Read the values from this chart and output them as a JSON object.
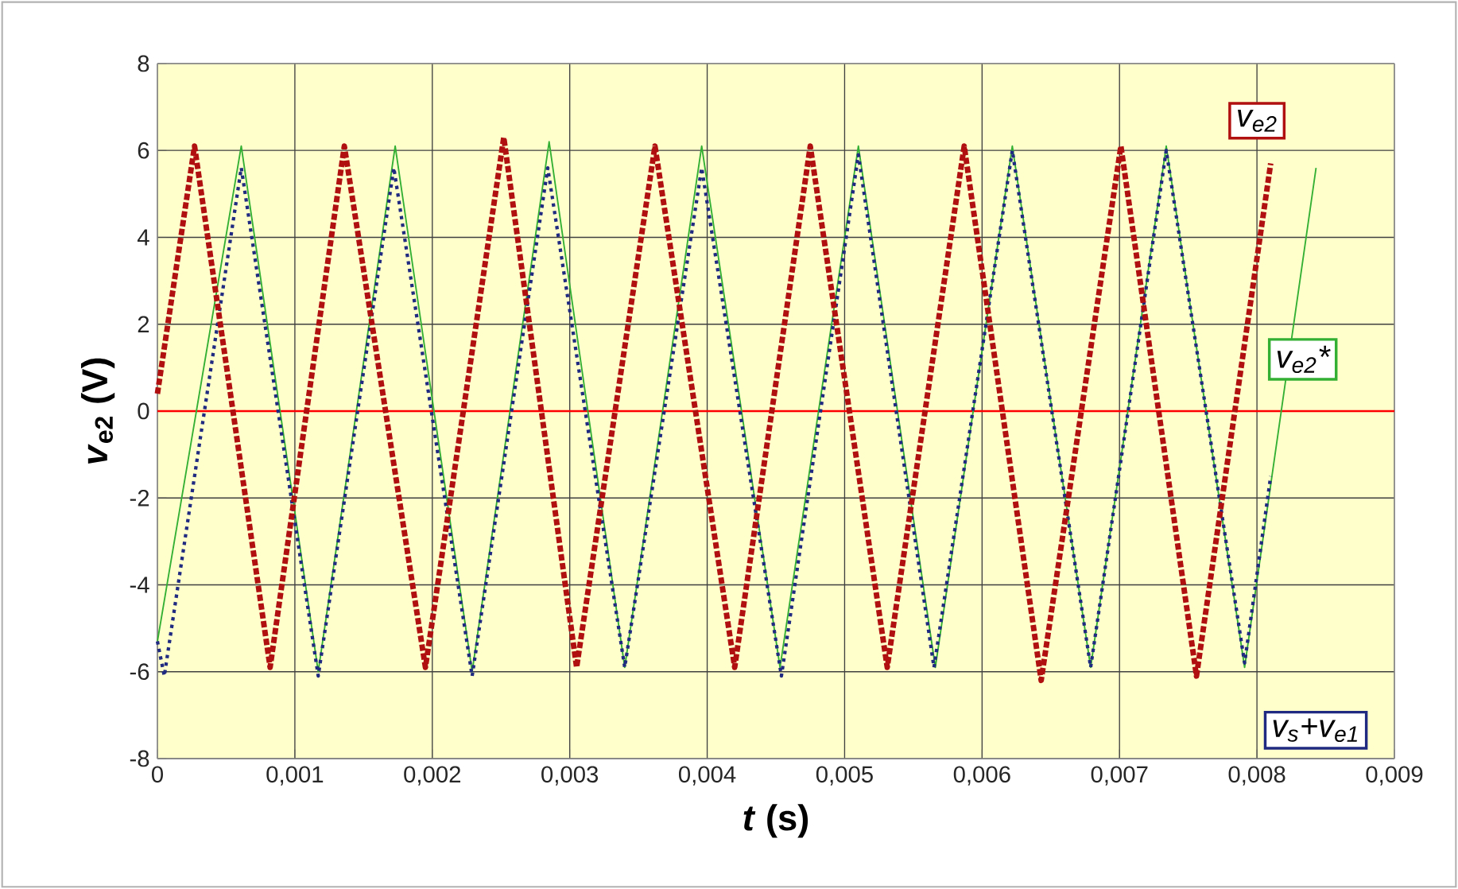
{
  "chart_data": {
    "type": "line",
    "xlabel": "*t* (s)",
    "ylabel": "*v*$_{e2}$ (V)",
    "xlim": [
      0,
      0.009
    ],
    "ylim": [
      -8,
      8
    ],
    "xticks": [
      0,
      {
        "value": 0.001,
        "label": "0,001"
      },
      {
        "value": 0.002,
        "label": "0,002"
      },
      {
        "value": 0.003,
        "label": "0,003"
      },
      {
        "value": 0.004,
        "label": "0,004"
      },
      {
        "value": 0.005,
        "label": "0,005"
      },
      {
        "value": 0.006,
        "label": "0,006"
      },
      {
        "value": 0.007,
        "label": "0,007"
      },
      {
        "value": 0.008,
        "label": "0,008"
      },
      {
        "value": 0.009,
        "label": "0,009"
      }
    ],
    "yticks": [
      -8,
      -6,
      -4,
      -2,
      0,
      2,
      4,
      6,
      8
    ],
    "grid": true,
    "ref_lines": [
      {
        "axis": "y",
        "value": 0,
        "color": "#ff0000"
      }
    ],
    "series": [
      {
        "name": "v$_{e2}$*",
        "color": "#33b033",
        "line_style": "solid",
        "x": [
          0,
          0.00061,
          0.00117,
          0.00173,
          0.00229,
          0.00285,
          0.0034,
          0.00396,
          0.00453,
          0.0051,
          0.00566,
          0.00622,
          0.00679,
          0.00734,
          0.00791,
          0.00843
        ],
        "values": [
          -5.3,
          6.1,
          -6.0,
          6.1,
          -6.0,
          6.2,
          -5.9,
          6.1,
          -5.9,
          6.1,
          -5.9,
          6.1,
          -5.9,
          6.1,
          -5.9,
          5.6
        ]
      },
      {
        "name": "v$_{s}$+v$_{e1}$",
        "color": "#1f2a80",
        "line_style": "dotted",
        "x": [
          0,
          5e-05,
          0.00061,
          0.00117,
          0.00172,
          0.00229,
          0.00284,
          0.0034,
          0.00396,
          0.00454,
          0.0051,
          0.00565,
          0.00622,
          0.00679,
          0.00734,
          0.00791,
          0.0081
        ],
        "values": [
          -5.3,
          -6.1,
          5.6,
          -6.1,
          5.6,
          -6.1,
          5.6,
          -5.9,
          5.6,
          -6.1,
          5.9,
          -5.9,
          6.0,
          -5.9,
          6.0,
          -5.8,
          -1.5
        ]
      },
      {
        "name": "v$_{e2}$",
        "color": "#b01010",
        "line_style": "dashed",
        "x": [
          0,
          0.00027,
          0.00082,
          0.00136,
          0.00195,
          0.00252,
          0.00305,
          0.00362,
          0.0042,
          0.00475,
          0.00531,
          0.00587,
          0.00643,
          0.00701,
          0.00756,
          0.0081
        ],
        "values": [
          0.4,
          6.1,
          -5.9,
          6.1,
          -5.9,
          6.3,
          -5.9,
          6.1,
          -5.9,
          6.1,
          -5.9,
          6.1,
          -6.2,
          6.1,
          -6.1,
          5.7
        ]
      }
    ]
  }
}
